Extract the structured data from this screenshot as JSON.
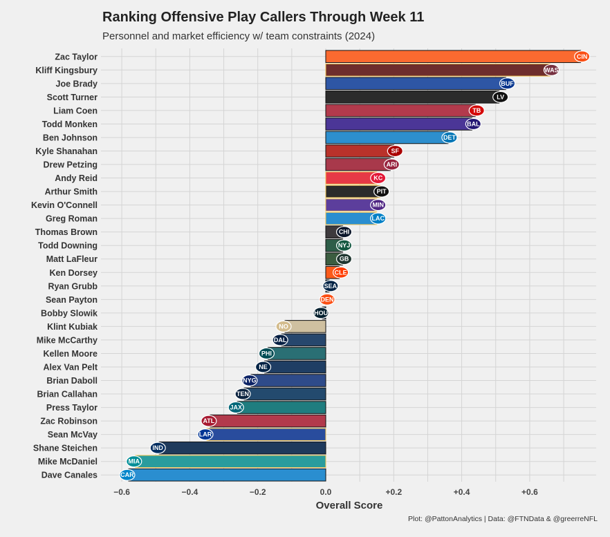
{
  "title": "Ranking Offensive Play Callers Through Week 11",
  "subtitle": "Personnel and market efficiency w/ team constraints (2024)",
  "caption": "Plot: @PattonAnalytics | Data: @FTNData & @greerreNFL",
  "chart_data": {
    "type": "bar",
    "orientation": "horizontal",
    "xlabel": "Overall Score",
    "ylabel": "",
    "xlim": [
      -0.65,
      0.79
    ],
    "xticks": [
      -0.6,
      -0.4,
      -0.2,
      0,
      0.2,
      0.4,
      0.6
    ],
    "xtick_labels": [
      "−0.6",
      "−0.4",
      "−0.2",
      "0.0",
      "+0.2",
      "+0.4",
      "+0.6"
    ],
    "grid": true,
    "categories": [
      "Zac Taylor",
      "Kliff Kingsbury",
      "Joe Brady",
      "Scott Turner",
      "Liam Coen",
      "Todd Monken",
      "Ben Johnson",
      "Kyle Shanahan",
      "Drew Petzing",
      "Andy Reid",
      "Arthur Smith",
      "Kevin O'Connell",
      "Greg Roman",
      "Thomas Brown",
      "Todd Downing",
      "Matt LaFleur",
      "Ken Dorsey",
      "Ryan Grubb",
      "Sean Payton",
      "Bobby Slowik",
      "Klint Kubiak",
      "Mike McCarthy",
      "Kellen Moore",
      "Alex Van Pelt",
      "Brian Daboll",
      "Brian Callahan",
      "Press Taylor",
      "Zac Robinson",
      "Sean McVay",
      "Shane Steichen",
      "Mike McDaniel",
      "Dave Canales"
    ],
    "values": [
      0.75,
      0.66,
      0.53,
      0.51,
      0.44,
      0.43,
      0.36,
      0.2,
      0.19,
      0.15,
      0.16,
      0.15,
      0.15,
      0.05,
      0.05,
      0.05,
      0.04,
      0.01,
      0.0,
      -0.01,
      -0.12,
      -0.13,
      -0.17,
      -0.18,
      -0.22,
      -0.24,
      -0.26,
      -0.34,
      -0.35,
      -0.49,
      -0.56,
      -0.58
    ],
    "bar_colors": [
      "#fb6a30",
      "#6e2d2d",
      "#2e56a5",
      "#2b2b2b",
      "#b23a4c",
      "#4b3697",
      "#2d8fce",
      "#b9322a",
      "#a8394b",
      "#e63946",
      "#2b2b2b",
      "#5c3e9c",
      "#2a8ed0",
      "#3e3a3d",
      "#2d5d48",
      "#3b5d40",
      "#fb5a1a",
      "#0f2f56",
      "#0e2d5c",
      "#0f2c52",
      "#cfc0a0",
      "#27476d",
      "#2a6f74",
      "#1f3e64",
      "#2e4b8a",
      "#234a6e",
      "#1f7d7f",
      "#b23a4c",
      "#294c9d",
      "#1f3a5c",
      "#2a9c9d",
      "#2a8ed0"
    ],
    "bar_outlines": [
      "#111111",
      "#f2c24e",
      "#111111",
      "#111111",
      "#111111",
      "#111111",
      "#111111",
      "#111111",
      "#111111",
      "#f2c24e",
      "#f2c24e",
      "#f2c24e",
      "#f2c24e",
      "#111111",
      "#111111",
      "#111111",
      "#111111",
      "#111111",
      "#111111",
      "#111111",
      "#111111",
      "#111111",
      "#111111",
      "#111111",
      "#111111",
      "#111111",
      "#111111",
      "#111111",
      "#f2c24e",
      "#111111",
      "#f2c24e",
      "#111111"
    ],
    "logos": [
      "CIN",
      "WAS",
      "BUF",
      "LV",
      "TB",
      "BAL",
      "DET",
      "SF",
      "ARI",
      "KC",
      "PIT",
      "MIN",
      "LAC",
      "CHI",
      "NYJ",
      "GB",
      "CLE",
      "SEA",
      "DEN",
      "HOU",
      "NO",
      "DAL",
      "PHI",
      "NE",
      "NYG",
      "TEN",
      "JAX",
      "ATL",
      "LAR",
      "IND",
      "MIA",
      "CAR"
    ],
    "logo_colors": [
      "#fb4f14",
      "#773141",
      "#00338d",
      "#111111",
      "#d50a0a",
      "#241773",
      "#0076b6",
      "#aa0000",
      "#97233f",
      "#e31837",
      "#111111",
      "#4f2683",
      "#0080c6",
      "#0b162a",
      "#125740",
      "#203731",
      "#ff3c00",
      "#002244",
      "#fb4f14",
      "#03202f",
      "#d3bc8d",
      "#041e42",
      "#004c54",
      "#002244",
      "#0b2265",
      "#0c2340",
      "#006778",
      "#a71930",
      "#003594",
      "#002c5f",
      "#008e97",
      "#0085ca"
    ]
  }
}
